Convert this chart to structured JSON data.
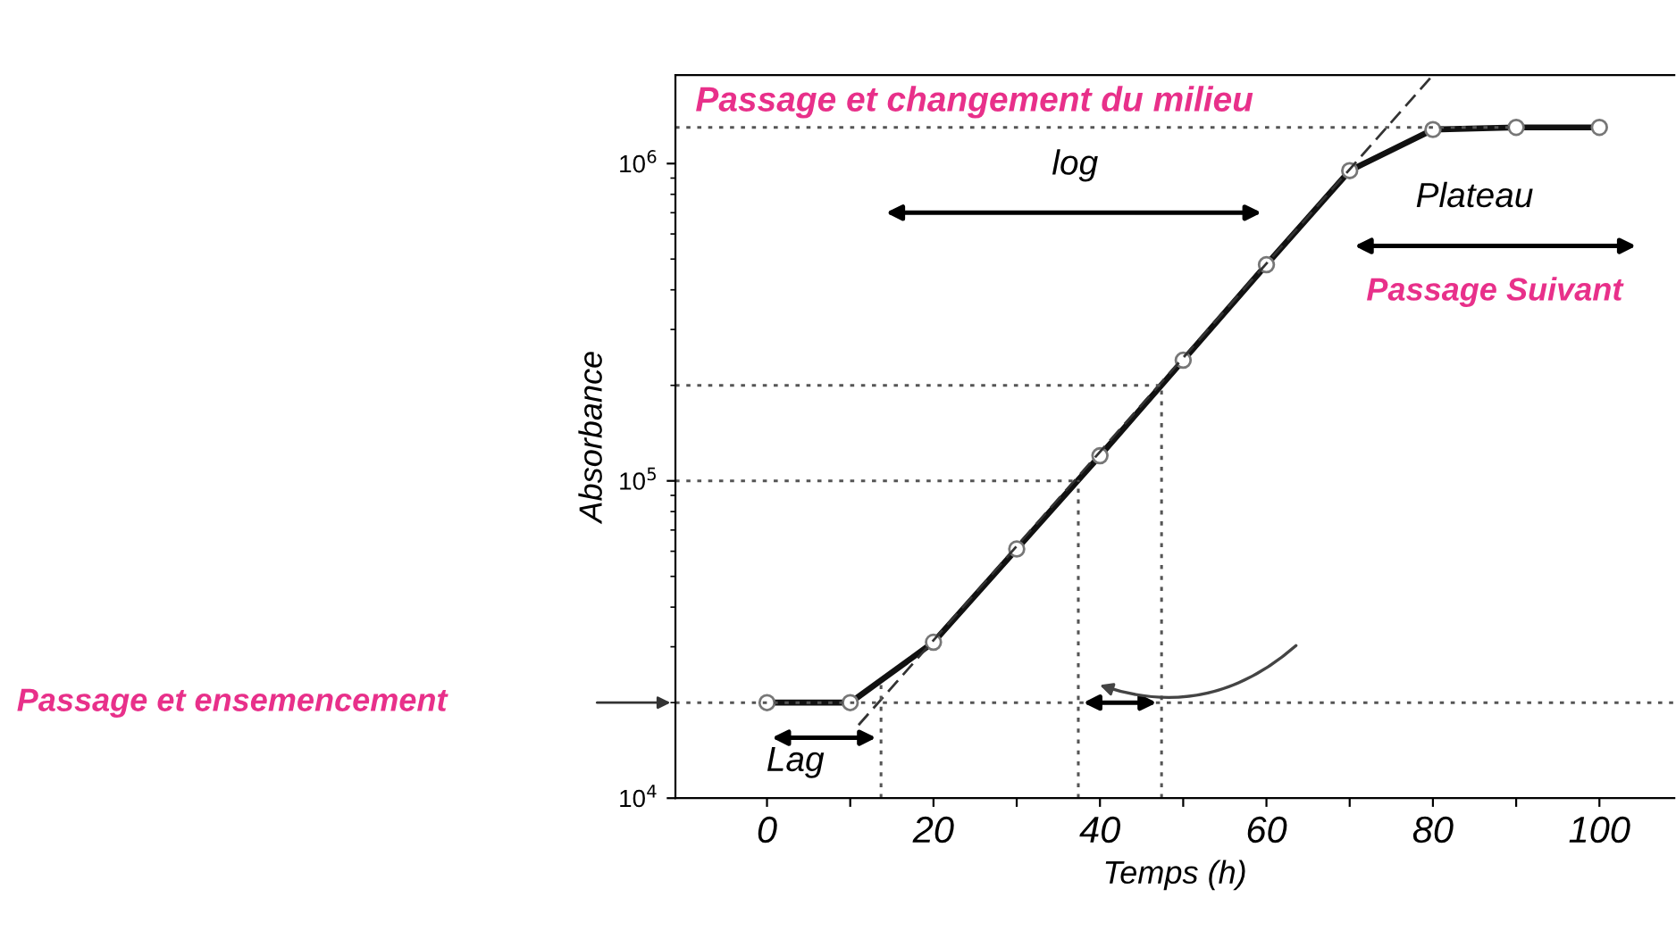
{
  "chart_data": {
    "type": "line",
    "xlabel": "Temps (h)",
    "ylabel": "Absorbance",
    "log": "y",
    "xlim": [
      -11,
      109
    ],
    "ylim": [
      10000,
      1900000
    ],
    "xticks": [
      0,
      {
        "value": 10,
        "label": null
      },
      20,
      {
        "value": 30,
        "label": null
      },
      40,
      {
        "value": 50,
        "label": null
      },
      60,
      {
        "value": 70,
        "label": null
      },
      80,
      {
        "value": 90,
        "label": null
      },
      100
    ],
    "yticks": [
      {
        "value": 10000,
        "label": "10$^{4}$"
      },
      {
        "value": 100000,
        "label": "10$^{5}$"
      },
      {
        "value": 1000000,
        "label": "10$^{6}$"
      }
    ],
    "grid": false,
    "series": [
      {
        "color": "#111111",
        "marker": "circle",
        "line_style": "solid",
        "x": [
          0,
          10,
          20,
          30,
          40,
          50,
          60,
          70,
          80,
          90,
          100
        ],
        "values": [
          20000,
          20000,
          31000,
          61000,
          120000,
          240000,
          480000,
          950000,
          1280000,
          1300000,
          1300000
        ]
      },
      {
        "color": "#333333",
        "marker": "none",
        "line_style": "dashed",
        "x": [
          11,
          80
        ],
        "values": [
          17000,
          1900000
        ]
      }
    ],
    "ref_lines": [
      {
        "axis": "y",
        "value": 20000,
        "color": "#555555",
        "line_style": "dotted"
      },
      {
        "axis": "y",
        "value": 100000,
        "color": "#555555",
        "line_style": "dotted"
      },
      {
        "axis": "y",
        "value": 200000,
        "color": "#555555",
        "line_style": "dotted"
      },
      {
        "axis": "y",
        "value": 1300000,
        "color": "#555555",
        "line_style": "dotted"
      },
      {
        "axis": "x",
        "value": 13.7,
        "color": "#555555",
        "line_style": "dotted"
      },
      {
        "axis": "x",
        "value": 37.4,
        "color": "#555555",
        "line_style": "dotted"
      },
      {
        "axis": "x",
        "value": 47.4,
        "color": "#555555",
        "line_style": "dotted"
      }
    ],
    "annotations": [
      "Passage et changement du milieu",
      "log",
      "Plateau",
      "Passage Suivant",
      "Passage et ensemencement",
      "Lag"
    ]
  }
}
